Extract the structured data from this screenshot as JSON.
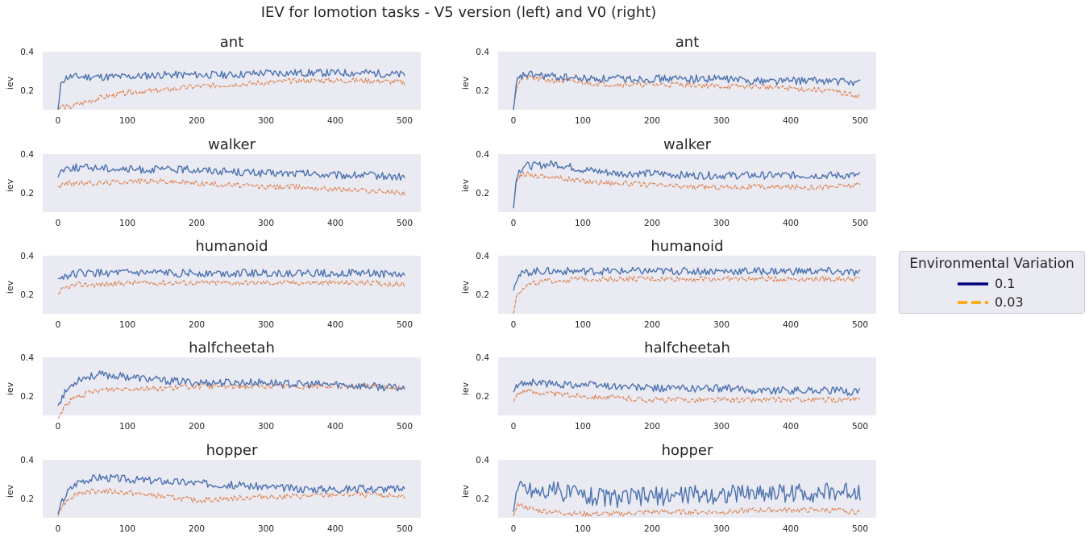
{
  "figure_title": "IEV for lomotion tasks - V5 version (left) and V0 (right)",
  "colors": {
    "panel_bg": "#eaeaf2",
    "series_high": "#4c72b0",
    "series_low": "#dd8452",
    "legend_high": "#000080",
    "legend_low": "#ffa500"
  },
  "legend": {
    "title": "Environmental Variation",
    "placement": "right",
    "entries": [
      {
        "label": "0.1",
        "style": "solid",
        "color": "#000080"
      },
      {
        "label": "0.03",
        "style": "dashed",
        "color": "#ffa500"
      }
    ]
  },
  "chart_data": [
    {
      "type": "line",
      "title": "ant",
      "ylabel": "iev",
      "xlim": [
        0,
        500
      ],
      "ylim": [
        0.1,
        0.4
      ],
      "xticks": [
        0,
        100,
        200,
        300,
        400,
        500
      ],
      "yticks": [
        0.2,
        0.4
      ],
      "grid": false,
      "series": [
        {
          "name": "0.1",
          "x": [
            0,
            5,
            15,
            30,
            60,
            100,
            150,
            200,
            250,
            300,
            350,
            400,
            450,
            500
          ],
          "y": [
            0.1,
            0.25,
            0.27,
            0.27,
            0.27,
            0.27,
            0.28,
            0.28,
            0.28,
            0.29,
            0.29,
            0.29,
            0.29,
            0.28
          ]
        },
        {
          "name": "0.03",
          "x": [
            0,
            5,
            15,
            30,
            60,
            100,
            150,
            200,
            250,
            300,
            350,
            400,
            450,
            500
          ],
          "y": [
            0.1,
            0.12,
            0.11,
            0.13,
            0.16,
            0.19,
            0.2,
            0.22,
            0.23,
            0.24,
            0.25,
            0.25,
            0.25,
            0.24
          ]
        }
      ]
    },
    {
      "type": "line",
      "title": "ant",
      "ylabel": "iev",
      "xlim": [
        0,
        500
      ],
      "ylim": [
        0.1,
        0.4
      ],
      "xticks": [
        0,
        100,
        200,
        300,
        400,
        500
      ],
      "yticks": [
        0.2,
        0.4
      ],
      "grid": false,
      "series": [
        {
          "name": "0.1",
          "x": [
            0,
            5,
            15,
            30,
            60,
            100,
            150,
            200,
            250,
            300,
            350,
            400,
            450,
            500
          ],
          "y": [
            0.1,
            0.25,
            0.28,
            0.28,
            0.27,
            0.26,
            0.26,
            0.26,
            0.26,
            0.26,
            0.25,
            0.25,
            0.25,
            0.24
          ]
        },
        {
          "name": "0.03",
          "x": [
            0,
            5,
            15,
            30,
            60,
            100,
            150,
            200,
            250,
            300,
            350,
            400,
            450,
            500
          ],
          "y": [
            0.1,
            0.23,
            0.27,
            0.26,
            0.25,
            0.24,
            0.23,
            0.23,
            0.23,
            0.22,
            0.22,
            0.21,
            0.2,
            0.17
          ]
        }
      ]
    },
    {
      "type": "line",
      "title": "walker",
      "ylabel": "iev",
      "xlim": [
        0,
        500
      ],
      "ylim": [
        0.1,
        0.4
      ],
      "xticks": [
        0,
        100,
        200,
        300,
        400,
        500
      ],
      "yticks": [
        0.2,
        0.4
      ],
      "grid": false,
      "series": [
        {
          "name": "0.1",
          "x": [
            0,
            5,
            15,
            30,
            60,
            100,
            150,
            200,
            250,
            300,
            350,
            400,
            450,
            500
          ],
          "y": [
            0.28,
            0.32,
            0.33,
            0.33,
            0.33,
            0.32,
            0.32,
            0.32,
            0.31,
            0.3,
            0.3,
            0.29,
            0.29,
            0.28
          ]
        },
        {
          "name": "0.03",
          "x": [
            0,
            5,
            15,
            30,
            60,
            100,
            150,
            200,
            250,
            300,
            350,
            400,
            450,
            500
          ],
          "y": [
            0.23,
            0.24,
            0.25,
            0.25,
            0.25,
            0.26,
            0.26,
            0.25,
            0.24,
            0.23,
            0.23,
            0.22,
            0.21,
            0.2
          ]
        }
      ]
    },
    {
      "type": "line",
      "title": "walker",
      "ylabel": "iev",
      "xlim": [
        0,
        500
      ],
      "ylim": [
        0.1,
        0.4
      ],
      "xticks": [
        0,
        100,
        200,
        300,
        400,
        500
      ],
      "yticks": [
        0.2,
        0.4
      ],
      "grid": false,
      "series": [
        {
          "name": "0.1",
          "x": [
            0,
            5,
            15,
            30,
            60,
            100,
            150,
            200,
            250,
            300,
            350,
            400,
            450,
            500
          ],
          "y": [
            0.12,
            0.3,
            0.34,
            0.34,
            0.35,
            0.32,
            0.3,
            0.3,
            0.29,
            0.29,
            0.29,
            0.29,
            0.29,
            0.29
          ]
        },
        {
          "name": "0.03",
          "x": [
            0,
            5,
            15,
            30,
            60,
            100,
            150,
            200,
            250,
            300,
            350,
            400,
            450,
            500
          ],
          "y": [
            0.12,
            0.27,
            0.3,
            0.29,
            0.28,
            0.26,
            0.25,
            0.24,
            0.23,
            0.23,
            0.23,
            0.23,
            0.23,
            0.24
          ]
        }
      ]
    },
    {
      "type": "line",
      "title": "humanoid",
      "ylabel": "iev",
      "xlim": [
        0,
        500
      ],
      "ylim": [
        0.1,
        0.4
      ],
      "xticks": [
        0,
        100,
        200,
        300,
        400,
        500
      ],
      "yticks": [
        0.2,
        0.4
      ],
      "grid": false,
      "series": [
        {
          "name": "0.1",
          "x": [
            0,
            5,
            15,
            30,
            60,
            100,
            150,
            200,
            250,
            300,
            350,
            400,
            450,
            500
          ],
          "y": [
            0.28,
            0.29,
            0.3,
            0.31,
            0.31,
            0.31,
            0.31,
            0.31,
            0.31,
            0.31,
            0.31,
            0.31,
            0.31,
            0.3
          ]
        },
        {
          "name": "0.03",
          "x": [
            0,
            5,
            15,
            30,
            60,
            100,
            150,
            200,
            250,
            300,
            350,
            400,
            450,
            500
          ],
          "y": [
            0.2,
            0.22,
            0.24,
            0.25,
            0.25,
            0.26,
            0.26,
            0.26,
            0.26,
            0.26,
            0.26,
            0.26,
            0.26,
            0.25
          ]
        }
      ]
    },
    {
      "type": "line",
      "title": "humanoid",
      "ylabel": "iev",
      "xlim": [
        0,
        500
      ],
      "ylim": [
        0.1,
        0.4
      ],
      "xticks": [
        0,
        100,
        200,
        300,
        400,
        500
      ],
      "yticks": [
        0.2,
        0.4
      ],
      "grid": false,
      "series": [
        {
          "name": "0.1",
          "x": [
            0,
            5,
            15,
            30,
            60,
            100,
            150,
            200,
            250,
            300,
            350,
            400,
            450,
            500
          ],
          "y": [
            0.22,
            0.29,
            0.31,
            0.32,
            0.32,
            0.32,
            0.32,
            0.32,
            0.32,
            0.32,
            0.32,
            0.32,
            0.32,
            0.31
          ]
        },
        {
          "name": "0.03",
          "x": [
            0,
            5,
            15,
            30,
            60,
            100,
            150,
            200,
            250,
            300,
            350,
            400,
            450,
            500
          ],
          "y": [
            0.1,
            0.2,
            0.24,
            0.26,
            0.27,
            0.28,
            0.28,
            0.28,
            0.28,
            0.28,
            0.28,
            0.28,
            0.28,
            0.28
          ]
        }
      ]
    },
    {
      "type": "line",
      "title": "halfcheetah",
      "ylabel": "iev",
      "xlim": [
        0,
        500
      ],
      "ylim": [
        0.1,
        0.4
      ],
      "xticks": [
        0,
        100,
        200,
        300,
        400,
        500
      ],
      "yticks": [
        0.2,
        0.4
      ],
      "grid": false,
      "series": [
        {
          "name": "0.1",
          "x": [
            0,
            5,
            15,
            30,
            60,
            100,
            150,
            200,
            250,
            300,
            350,
            400,
            450,
            500
          ],
          "y": [
            0.15,
            0.19,
            0.24,
            0.29,
            0.31,
            0.3,
            0.28,
            0.27,
            0.27,
            0.27,
            0.26,
            0.26,
            0.25,
            0.24
          ]
        },
        {
          "name": "0.03",
          "x": [
            0,
            5,
            15,
            30,
            60,
            100,
            150,
            200,
            250,
            300,
            350,
            400,
            450,
            500
          ],
          "y": [
            0.08,
            0.12,
            0.17,
            0.2,
            0.23,
            0.24,
            0.24,
            0.25,
            0.25,
            0.25,
            0.25,
            0.25,
            0.25,
            0.24
          ]
        }
      ]
    },
    {
      "type": "line",
      "title": "halfcheetah",
      "ylabel": "iev",
      "xlim": [
        0,
        500
      ],
      "ylim": [
        0.1,
        0.4
      ],
      "xticks": [
        0,
        100,
        200,
        300,
        400,
        500
      ],
      "yticks": [
        0.2,
        0.4
      ],
      "grid": false,
      "series": [
        {
          "name": "0.1",
          "x": [
            0,
            5,
            15,
            30,
            60,
            100,
            150,
            200,
            250,
            300,
            350,
            400,
            450,
            500
          ],
          "y": [
            0.22,
            0.25,
            0.27,
            0.27,
            0.26,
            0.26,
            0.25,
            0.24,
            0.24,
            0.24,
            0.23,
            0.23,
            0.23,
            0.22
          ]
        },
        {
          "name": "0.03",
          "x": [
            0,
            5,
            15,
            30,
            60,
            100,
            150,
            200,
            250,
            300,
            350,
            400,
            450,
            500
          ],
          "y": [
            0.17,
            0.21,
            0.23,
            0.22,
            0.21,
            0.2,
            0.19,
            0.18,
            0.18,
            0.18,
            0.18,
            0.18,
            0.18,
            0.18
          ]
        }
      ]
    },
    {
      "type": "line",
      "title": "hopper",
      "ylabel": "iev",
      "xlim": [
        0,
        500
      ],
      "ylim": [
        0.1,
        0.4
      ],
      "xticks": [
        0,
        100,
        200,
        300,
        400,
        500
      ],
      "yticks": [
        0.2,
        0.4
      ],
      "grid": false,
      "series": [
        {
          "name": "0.1",
          "x": [
            0,
            5,
            15,
            30,
            60,
            100,
            150,
            200,
            250,
            300,
            350,
            400,
            450,
            500
          ],
          "y": [
            0.12,
            0.18,
            0.24,
            0.29,
            0.31,
            0.3,
            0.29,
            0.28,
            0.27,
            0.26,
            0.25,
            0.25,
            0.25,
            0.25
          ]
        },
        {
          "name": "0.03",
          "x": [
            0,
            5,
            15,
            30,
            60,
            100,
            150,
            200,
            250,
            300,
            350,
            400,
            450,
            500
          ],
          "y": [
            0.11,
            0.16,
            0.2,
            0.23,
            0.24,
            0.23,
            0.21,
            0.19,
            0.2,
            0.21,
            0.21,
            0.22,
            0.22,
            0.21
          ]
        }
      ]
    },
    {
      "type": "line",
      "title": "hopper",
      "ylabel": "iev",
      "xlim": [
        0,
        500
      ],
      "ylim": [
        0.1,
        0.4
      ],
      "xticks": [
        0,
        100,
        200,
        300,
        400,
        500
      ],
      "yticks": [
        0.2,
        0.4
      ],
      "grid": false,
      "series": [
        {
          "name": "0.1",
          "x": [
            0,
            5,
            15,
            30,
            60,
            100,
            150,
            200,
            250,
            300,
            350,
            400,
            450,
            500
          ],
          "y": [
            0.13,
            0.25,
            0.26,
            0.24,
            0.24,
            0.22,
            0.2,
            0.21,
            0.22,
            0.22,
            0.23,
            0.23,
            0.23,
            0.24
          ]
        },
        {
          "name": "0.03",
          "x": [
            0,
            5,
            15,
            30,
            60,
            100,
            150,
            200,
            250,
            300,
            350,
            400,
            450,
            500
          ],
          "y": [
            0.11,
            0.17,
            0.16,
            0.14,
            0.13,
            0.12,
            0.12,
            0.13,
            0.13,
            0.13,
            0.14,
            0.14,
            0.14,
            0.13
          ]
        }
      ]
    }
  ]
}
